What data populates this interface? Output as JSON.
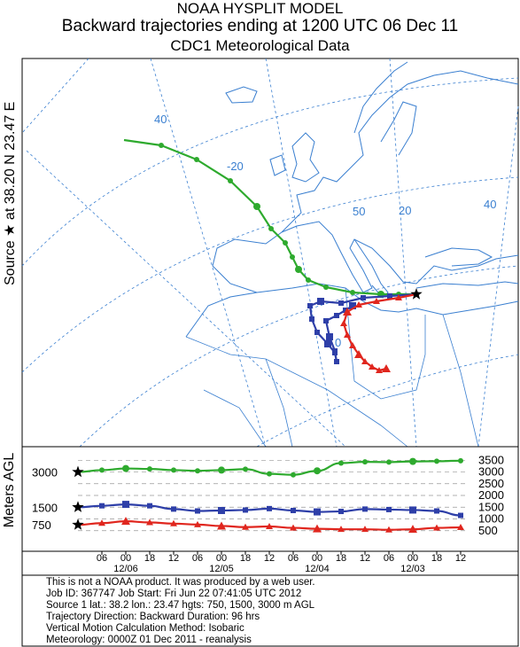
{
  "header": {
    "line1": "NOAA HYSPLIT MODEL",
    "line2": "Backward trajectories ending at 1200 UTC 06 Dec 11",
    "line3": "CDC1 Meteorological Data"
  },
  "side_label": "Source ★ at   38.20 N   23.47 E",
  "meters_label": "Meters AGL",
  "map": {
    "grid_labels": [
      "40",
      "-20",
      "50",
      "20",
      "40",
      "0"
    ],
    "colors": {
      "green": "#2eaa2e",
      "blue": "#2e3fa8",
      "red": "#e0261e",
      "coast": "#3a7fd0",
      "grid": "#3a7fd0"
    }
  },
  "chart_data": {
    "type": "line",
    "title": "",
    "ylabel": "Meters AGL",
    "x_tick_labels": [
      "06",
      "00",
      "18",
      "12",
      "06",
      "00",
      "18",
      "12",
      "06",
      "00",
      "18",
      "12",
      "06",
      "00",
      "18",
      "12"
    ],
    "x_date_labels": [
      "12/06",
      "12/05",
      "12/04",
      "12/03"
    ],
    "y_left_ticks": [
      "3000",
      "1500",
      "750"
    ],
    "y_right_ticks": [
      "3500",
      "3000",
      "2500",
      "2000",
      "1500",
      "1000",
      "500"
    ],
    "ylim": [
      0,
      3700
    ],
    "hours_back": [
      96,
      90,
      84,
      78,
      72,
      66,
      60,
      54,
      48,
      42,
      36,
      30,
      24,
      18,
      12,
      6,
      0
    ],
    "series": [
      {
        "color": "#2eaa2e",
        "marker": "circle",
        "values": [
          3000,
          3080,
          3150,
          3130,
          3080,
          3050,
          3080,
          3120,
          2920,
          2880,
          3050,
          3380,
          3430,
          3420,
          3450,
          3460,
          3480
        ]
      },
      {
        "color": "#2e3fa8",
        "marker": "square",
        "values": [
          1500,
          1560,
          1620,
          1560,
          1420,
          1340,
          1360,
          1380,
          1440,
          1360,
          1300,
          1320,
          1420,
          1400,
          1380,
          1340,
          1150
        ]
      },
      {
        "color": "#e0261e",
        "marker": "triangle",
        "values": [
          750,
          820,
          900,
          850,
          800,
          760,
          700,
          650,
          680,
          620,
          580,
          560,
          560,
          540,
          560,
          620,
          640
        ]
      }
    ]
  },
  "info": {
    "line1": "This is not a NOAA product. It was produced by a web user.",
    "line2": "Job ID: 367747              Job Start: Fri Jun 22 07:41:05 UTC 2012",
    "line3": "Source 1 lat.: 38.2  lon.: 23.47  hgts: 750, 1500, 3000 m AGL",
    "line4": "Trajectory Direction: Backward       Duration: 96 hrs",
    "line5": "Vertical Motion Calculation Method:        Isobaric",
    "line6": "Meteorology: 0000Z 01 Dec 2011 - reanalysis"
  }
}
